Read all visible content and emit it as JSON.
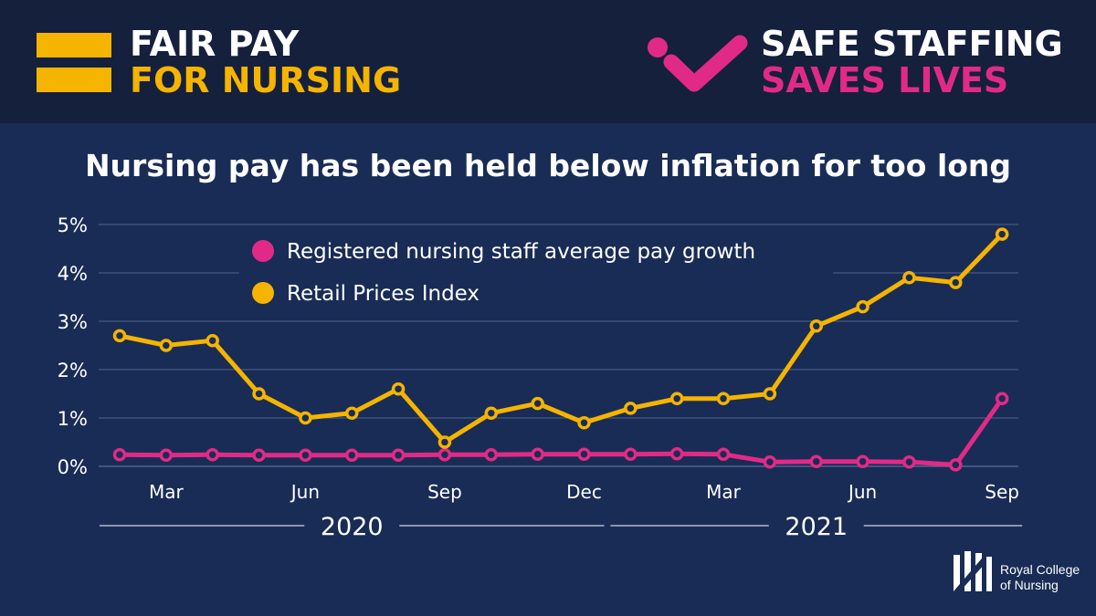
{
  "header": {
    "left_line1": "FAIR PAY",
    "left_line2": "FOR NURSING",
    "right_line1": "SAFE STAFFING",
    "right_line2": "SAVES LIVES"
  },
  "colors": {
    "gold": "#f5b400",
    "pink": "#e12a87",
    "background": "#192c55",
    "header_bg": "#15203d"
  },
  "footer": {
    "logo_line1": "Royal College",
    "logo_line2": "of Nursing"
  },
  "chart_data": {
    "type": "line",
    "title": "Nursing pay has been held below inflation for too long",
    "ylim": [
      0,
      5
    ],
    "yticks": [
      "0%",
      "1%",
      "2%",
      "3%",
      "4%",
      "5%"
    ],
    "months": [
      "Feb 2020",
      "Mar 2020",
      "Apr 2020",
      "May 2020",
      "Jun 2020",
      "Jul 2020",
      "Aug 2020",
      "Sep 2020",
      "Oct 2020",
      "Nov 2020",
      "Dec 2020",
      "Jan 2021",
      "Feb 2021",
      "Mar 2021",
      "Apr 2021",
      "May 2021",
      "Jun 2021",
      "Jul 2021",
      "Aug 2021",
      "Sep 2021"
    ],
    "xtick_labels": [
      {
        "index": 1,
        "label": "Mar"
      },
      {
        "index": 4,
        "label": "Jun"
      },
      {
        "index": 7,
        "label": "Sep"
      },
      {
        "index": 10,
        "label": "Dec"
      },
      {
        "index": 13,
        "label": "Mar"
      },
      {
        "index": 16,
        "label": "Jun"
      },
      {
        "index": 19,
        "label": "Sep"
      }
    ],
    "year_labels": [
      {
        "label": "2020",
        "from_index": 0,
        "to_index": 10
      },
      {
        "label": "2021",
        "from_index": 11,
        "to_index": 19
      }
    ],
    "series": [
      {
        "name": "Registered nursing staff average pay growth",
        "color": "#e12a87",
        "values": [
          0.24,
          0.23,
          0.24,
          0.23,
          0.23,
          0.23,
          0.23,
          0.24,
          0.24,
          0.25,
          0.25,
          0.25,
          0.26,
          0.25,
          0.09,
          0.1,
          0.1,
          0.09,
          0.03,
          1.4
        ]
      },
      {
        "name": "Retail Prices Index",
        "color": "#f5b400",
        "values": [
          2.7,
          2.5,
          2.6,
          1.5,
          1.0,
          1.1,
          1.6,
          0.5,
          1.1,
          1.3,
          0.9,
          1.2,
          1.4,
          1.4,
          1.5,
          2.9,
          3.3,
          3.9,
          3.8,
          4.8
        ]
      }
    ],
    "legend_position": "top-left",
    "grid": true
  }
}
